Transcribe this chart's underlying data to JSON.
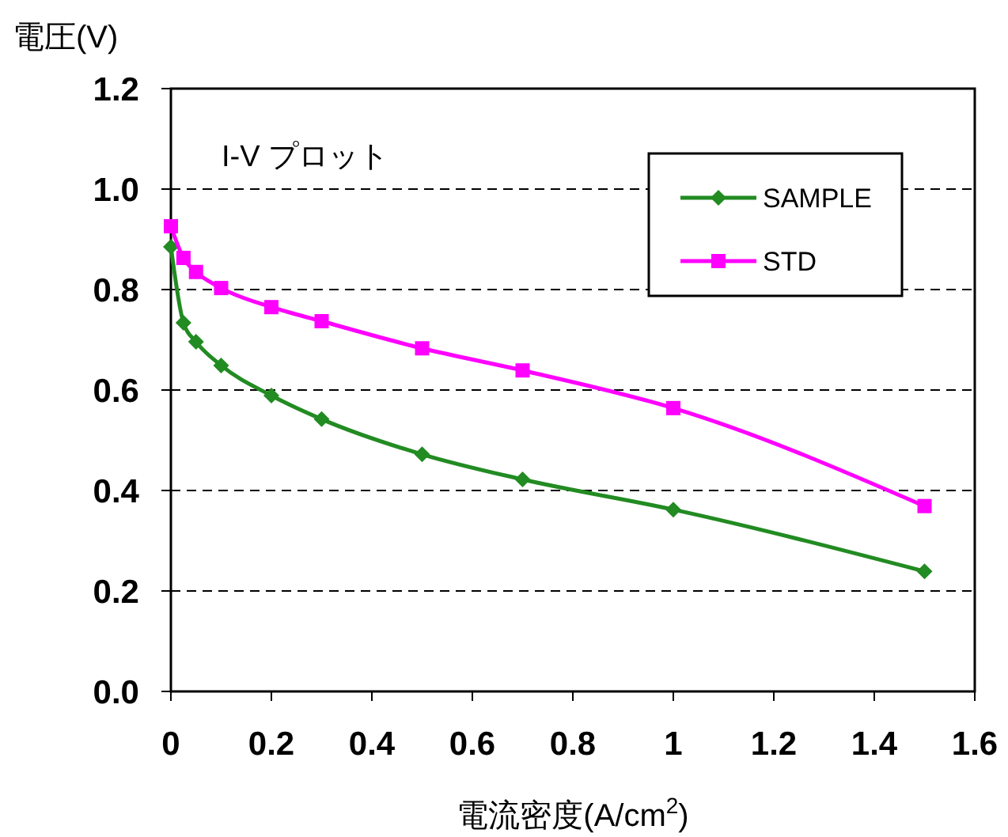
{
  "chart_data": {
    "type": "line",
    "ylabel": "電圧(V)",
    "xlabel": "電流密度(A/cm$^{2}$)",
    "annotations": [
      "I-V プロット"
    ],
    "xlim": [
      0,
      1.6
    ],
    "xticks": [
      0,
      0.2,
      0.4,
      0.6,
      0.8,
      1,
      1.2,
      1.4,
      1.6
    ],
    "ylim": [
      0,
      1.2
    ],
    "yticks": [
      {
        "value": 0,
        "label": "0.0"
      },
      0.2,
      0.4,
      0.6,
      0.8,
      {
        "value": 1,
        "label": "1.0"
      },
      1.2
    ],
    "grid": "y",
    "legend": "top right",
    "line_style": "solid",
    "series": [
      {
        "name": "SAMPLE",
        "color": "#228b22",
        "marker": "diamond",
        "x": [
          0,
          0.025,
          0.05,
          0.1,
          0.2,
          0.3,
          0.5,
          0.7,
          1.0,
          1.5
        ],
        "values": [
          0.885,
          0.734,
          0.696,
          0.649,
          0.589,
          0.542,
          0.472,
          0.422,
          0.362,
          0.239
        ]
      },
      {
        "name": "STD",
        "color": "#ff00ff",
        "marker": "square",
        "x": [
          0,
          0.025,
          0.05,
          0.1,
          0.2,
          0.3,
          0.5,
          0.7,
          1.0,
          1.5
        ],
        "values": [
          0.926,
          0.863,
          0.835,
          0.803,
          0.765,
          0.737,
          0.683,
          0.639,
          0.564,
          0.369
        ]
      }
    ]
  }
}
